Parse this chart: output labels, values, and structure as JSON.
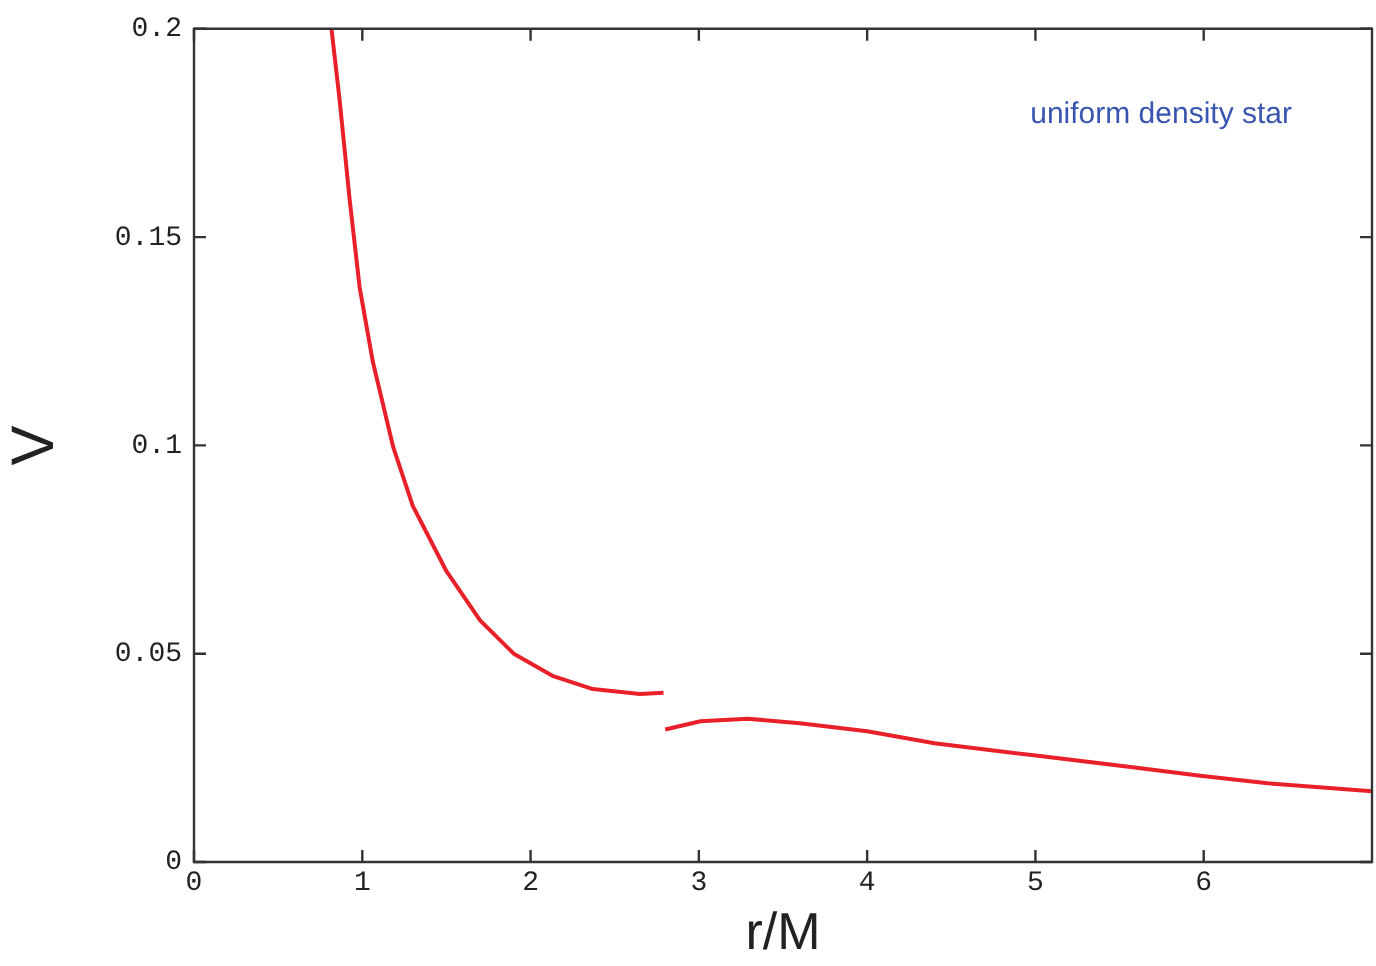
{
  "chart_data": {
    "type": "line",
    "xlabel": "r/M",
    "ylabel": "V",
    "annotations": [
      "uniform density star"
    ],
    "xlim": [
      0,
      7
    ],
    "xticks": [
      0,
      1,
      2,
      3,
      4,
      5,
      6
    ],
    "ylim": [
      0,
      0.2
    ],
    "yticks": [
      0,
      0.05,
      0.1,
      0.15,
      0.2
    ],
    "grid": false,
    "legend": false,
    "marker": "none",
    "line_style": "solid",
    "series": [
      {
        "color": "#e8202a",
        "x": [
          0.817,
          0.865,
          0.925,
          0.984,
          1.063,
          1.183,
          1.3,
          1.5,
          1.7,
          1.9,
          2.13,
          2.37,
          2.65,
          2.79,
          2.795,
          2.8,
          3.01,
          3.29,
          3.6,
          4.0,
          4.4,
          4.99,
          5.59,
          5.98,
          6.38,
          7.0
        ],
        "values": [
          0.2,
          0.183,
          0.159,
          0.138,
          0.12,
          0.0997,
          0.0855,
          0.0698,
          0.058,
          0.05,
          0.0447,
          0.0415,
          0.0403,
          0.0406,
          null,
          0.0318,
          0.0338,
          0.0344,
          0.0333,
          0.0314,
          0.0285,
          0.0256,
          0.0227,
          0.0207,
          0.0189,
          0.017
        ]
      }
    ]
  }
}
